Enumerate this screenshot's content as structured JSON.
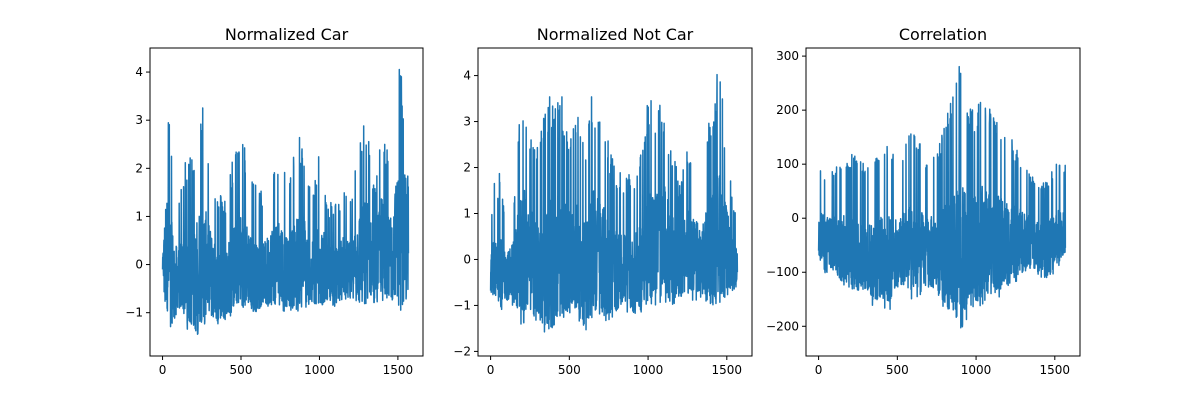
{
  "style": {
    "line_color": "#1f77b4",
    "axes_color": "#000000",
    "background": "#ffffff"
  },
  "chart_data": [
    {
      "type": "line",
      "title": "Normalized Car",
      "xlabel": "",
      "ylabel": "",
      "xlim": [
        -80,
        1660
      ],
      "ylim": [
        -1.9,
        4.5
      ],
      "xticks": [
        0,
        500,
        1000,
        1500
      ],
      "yticks": [
        -1,
        0,
        1,
        2,
        3,
        4
      ],
      "grid": false,
      "n_points": 1568,
      "series": [
        {
          "x": [
            0,
            20,
            40,
            60,
            80,
            100,
            150,
            200,
            250,
            300,
            350,
            400,
            450,
            500,
            550,
            600,
            650,
            700,
            750,
            800,
            850,
            900,
            950,
            1000,
            1050,
            1100,
            1150,
            1200,
            1250,
            1300,
            1350,
            1400,
            1450,
            1500,
            1530,
            1560
          ],
          "min": [
            -0.2,
            -1.1,
            -1.2,
            -1.4,
            -1.1,
            -1.0,
            -1.3,
            -1.6,
            -1.4,
            -1.1,
            -1.3,
            -1.2,
            -1.1,
            -1.0,
            -1.0,
            -1.1,
            -0.9,
            -0.9,
            -1.0,
            -1.0,
            -1.0,
            -1.0,
            -0.8,
            -0.9,
            -0.8,
            -0.9,
            -0.7,
            -0.8,
            -0.8,
            -0.9,
            -0.8,
            -0.8,
            -0.7,
            -0.9,
            -1.0,
            -0.8
          ],
          "max": [
            0.3,
            3.4,
            3.3,
            2.6,
            1.6,
            1.4,
            2.2,
            2.4,
            3.6,
            2.3,
            1.5,
            1.4,
            2.3,
            2.7,
            2.2,
            1.6,
            1.5,
            2.2,
            2.6,
            1.6,
            2.6,
            2.7,
            1.3,
            2.6,
            1.3,
            1.3,
            1.6,
            1.4,
            2.5,
            3.2,
            1.6,
            3.3,
            2.1,
            4.2,
            4.0,
            4.1
          ]
        }
      ]
    },
    {
      "type": "line",
      "title": "Normalized Not Car",
      "xlabel": "",
      "ylabel": "",
      "xlim": [
        -80,
        1660
      ],
      "ylim": [
        -2.1,
        4.6
      ],
      "xticks": [
        0,
        500,
        1000,
        1500
      ],
      "yticks": [
        -2,
        -1,
        0,
        1,
        2,
        3,
        4
      ],
      "grid": false,
      "n_points": 1568,
      "series": [
        {
          "x": [
            0,
            20,
            40,
            60,
            80,
            100,
            150,
            200,
            250,
            300,
            350,
            400,
            450,
            500,
            550,
            600,
            650,
            700,
            750,
            800,
            850,
            900,
            950,
            1000,
            1050,
            1100,
            1150,
            1200,
            1250,
            1300,
            1350,
            1400,
            1450,
            1500,
            1530,
            1560
          ],
          "min": [
            -0.7,
            -0.8,
            -1.0,
            -1.3,
            -0.9,
            -1.0,
            -1.0,
            -1.5,
            -1.1,
            -1.4,
            -1.7,
            -1.8,
            -1.2,
            -1.5,
            -1.3,
            -1.6,
            -1.3,
            -1.3,
            -1.5,
            -1.1,
            -1.1,
            -1.3,
            -1.2,
            -1.1,
            -1.0,
            -1.0,
            -1.0,
            -0.9,
            -0.9,
            -0.9,
            -0.9,
            -1.0,
            -1.0,
            -0.8,
            -0.7,
            -0.6
          ],
          "max": [
            0.6,
            1.8,
            1.2,
            2.1,
            1.3,
            1.0,
            1.5,
            4.1,
            2.9,
            2.5,
            3.4,
            3.9,
            3.6,
            3.0,
            3.2,
            2.8,
            3.8,
            3.4,
            2.6,
            1.9,
            1.9,
            1.8,
            2.2,
            3.5,
            3.5,
            3.7,
            2.6,
            1.6,
            2.6,
            2.2,
            2.1,
            3.4,
            4.3,
            2.6,
            1.5,
            0.9
          ]
        }
      ]
    },
    {
      "type": "line",
      "title": "Correlation",
      "xlabel": "",
      "ylabel": "",
      "xlim": [
        -80,
        1660
      ],
      "ylim": [
        -255,
        315
      ],
      "xticks": [
        0,
        500,
        1000,
        1500
      ],
      "yticks": [
        -200,
        -100,
        0,
        100,
        200,
        300
      ],
      "grid": false,
      "n_points": 1568,
      "series": [
        {
          "x": [
            0,
            20,
            40,
            60,
            80,
            100,
            150,
            200,
            250,
            300,
            350,
            400,
            450,
            500,
            550,
            600,
            650,
            700,
            750,
            800,
            850,
            900,
            950,
            1000,
            1050,
            1100,
            1150,
            1200,
            1250,
            1300,
            1350,
            1400,
            1450,
            1500,
            1530,
            1560
          ],
          "min": [
            -80,
            -90,
            -110,
            -100,
            -95,
            -110,
            -130,
            -140,
            -150,
            -140,
            -170,
            -160,
            -180,
            -130,
            -140,
            -160,
            -150,
            -140,
            -150,
            -170,
            -200,
            -230,
            -190,
            -170,
            -160,
            -140,
            -150,
            -140,
            -120,
            -110,
            -100,
            -110,
            -120,
            -100,
            -90,
            -80
          ],
          "max": [
            95,
            100,
            70,
            90,
            100,
            90,
            110,
            120,
            120,
            100,
            110,
            130,
            150,
            90,
            150,
            160,
            140,
            110,
            130,
            180,
            230,
            290,
            220,
            200,
            240,
            190,
            190,
            170,
            130,
            110,
            80,
            70,
            70,
            100,
            100,
            100
          ]
        }
      ]
    }
  ]
}
